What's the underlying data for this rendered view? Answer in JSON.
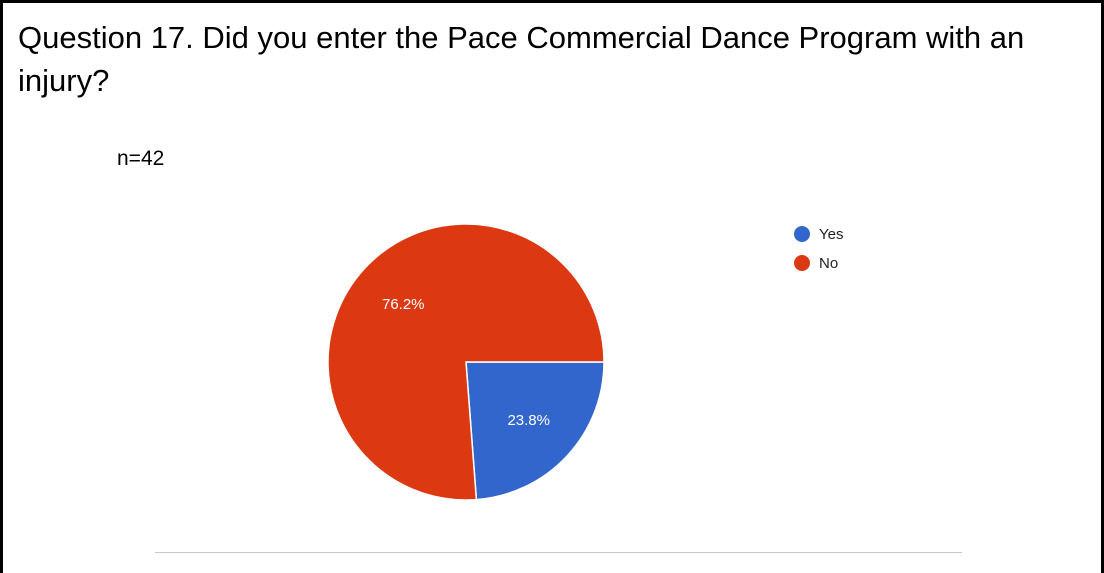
{
  "question": {
    "text": "Question 17. Did you enter the Pace Commercial Dance Program with an injury?"
  },
  "sample_size": "n=42",
  "chart_data": {
    "type": "pie",
    "title": "",
    "slices": [
      {
        "label": "Yes",
        "value": 23.8,
        "display": "23.8%",
        "color": "#3366cc"
      },
      {
        "label": "No",
        "value": 76.2,
        "display": "76.2%",
        "color": "#dc3912"
      }
    ],
    "legend": {
      "placement": "right",
      "entries": [
        "Yes",
        "No"
      ]
    },
    "start_angle_deg": 90,
    "direction": "clockwise"
  }
}
